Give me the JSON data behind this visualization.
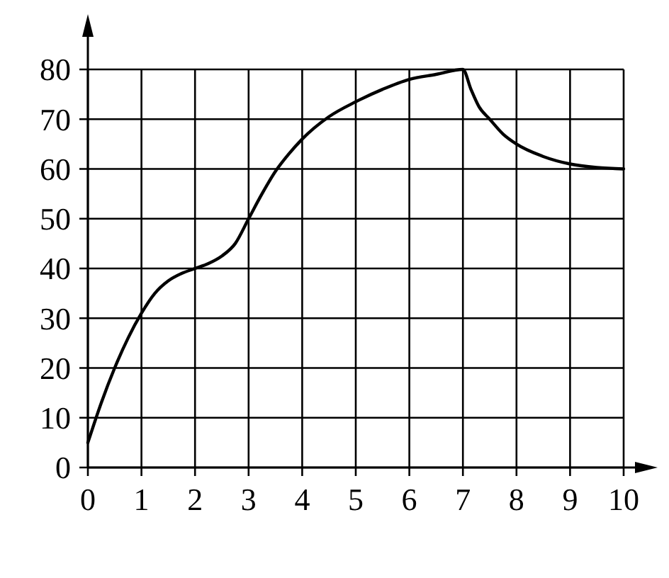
{
  "chart_data": {
    "type": "line",
    "x": [
      0,
      0.25,
      0.5,
      0.75,
      1,
      1.25,
      1.5,
      1.75,
      2,
      2.25,
      2.5,
      2.75,
      3,
      3.25,
      3.5,
      3.75,
      4,
      4.5,
      5,
      5.5,
      6,
      6.5,
      7,
      7.15,
      7.3,
      7.5,
      7.75,
      8,
      8.5,
      9,
      9.5,
      10
    ],
    "series": [
      {
        "color": "#000000",
        "values": [
          5,
          13,
          20,
          26,
          31,
          35,
          37.5,
          39,
          40,
          41,
          42.5,
          45,
          50,
          55,
          59.5,
          63,
          66,
          70.5,
          73.5,
          76,
          78,
          79,
          80,
          76,
          72.5,
          70,
          67,
          65,
          62.5,
          61,
          60.3,
          60
        ]
      }
    ],
    "xlim": [
      0,
      10
    ],
    "ylim": [
      0,
      80
    ],
    "xticks": [
      0,
      1,
      2,
      3,
      4,
      5,
      6,
      7,
      8,
      9,
      10
    ],
    "yticks": [
      0,
      10,
      20,
      30,
      40,
      50,
      60,
      70,
      80
    ],
    "grid": true,
    "marker": "none",
    "line_style": "solid"
  }
}
